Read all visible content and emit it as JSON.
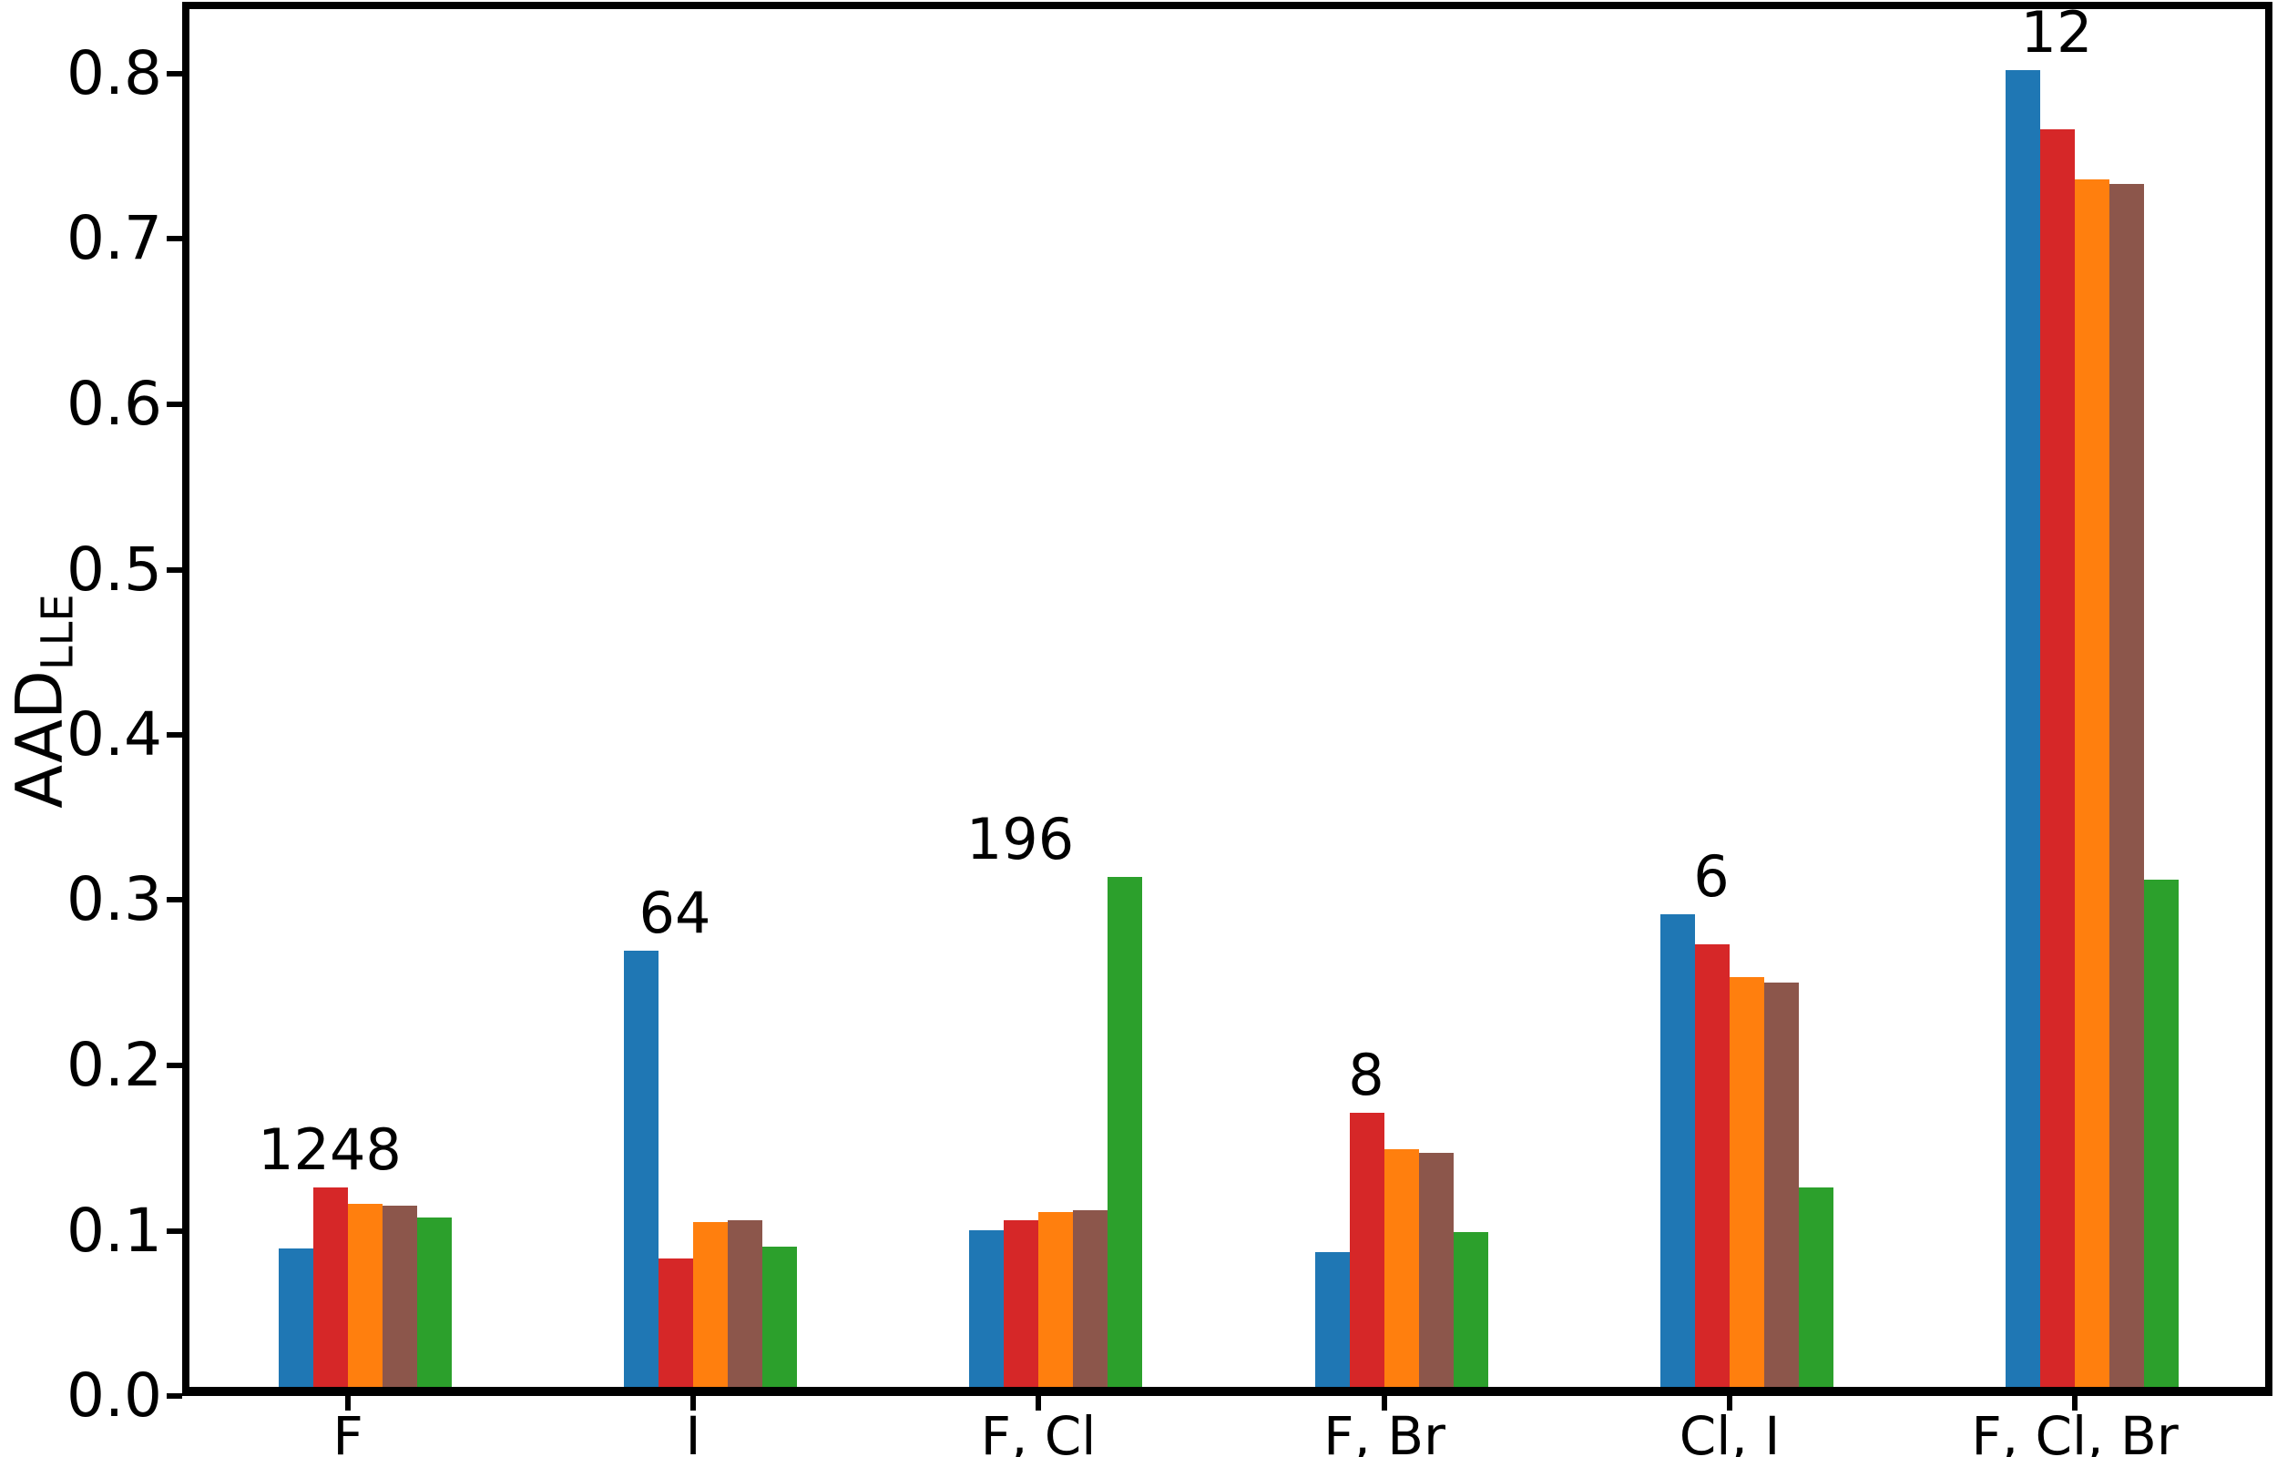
{
  "figure": {
    "background_color": "#ffffff",
    "frame_color": "#000000",
    "text_color": "#000000"
  },
  "chart_data": {
    "type": "bar",
    "title": "",
    "xlabel": "",
    "ylabel": {
      "main": "AAD",
      "subscript": "LLE"
    },
    "categories": [
      "F",
      "I",
      "F, Cl",
      "F, Br",
      "Cl, I",
      "F, Cl, Br"
    ],
    "group_annotations": [
      "1248",
      "64",
      "196",
      "8",
      "6",
      "12"
    ],
    "series": [
      {
        "name": "blue",
        "color": "#1f77b4",
        "values": [
          0.087,
          0.267,
          0.098,
          0.085,
          0.289,
          0.8
        ]
      },
      {
        "name": "red",
        "color": "#d62728",
        "values": [
          0.124,
          0.081,
          0.104,
          0.169,
          0.271,
          0.764
        ]
      },
      {
        "name": "orange",
        "color": "#ff7f0e",
        "values": [
          0.114,
          0.103,
          0.109,
          0.147,
          0.251,
          0.734
        ]
      },
      {
        "name": "brown",
        "color": "#8c564b",
        "values": [
          0.113,
          0.104,
          0.11,
          0.145,
          0.248,
          0.731
        ]
      },
      {
        "name": "green",
        "color": "#2ca02c",
        "values": [
          0.106,
          0.088,
          0.312,
          0.097,
          0.124,
          0.31
        ]
      }
    ],
    "y_ticks": [
      "0.0",
      "0.1",
      "0.2",
      "0.3",
      "0.4",
      "0.5",
      "0.6",
      "0.7",
      "0.8"
    ],
    "ylim": [
      0.0,
      0.84
    ],
    "grid": false,
    "legend": "none"
  }
}
